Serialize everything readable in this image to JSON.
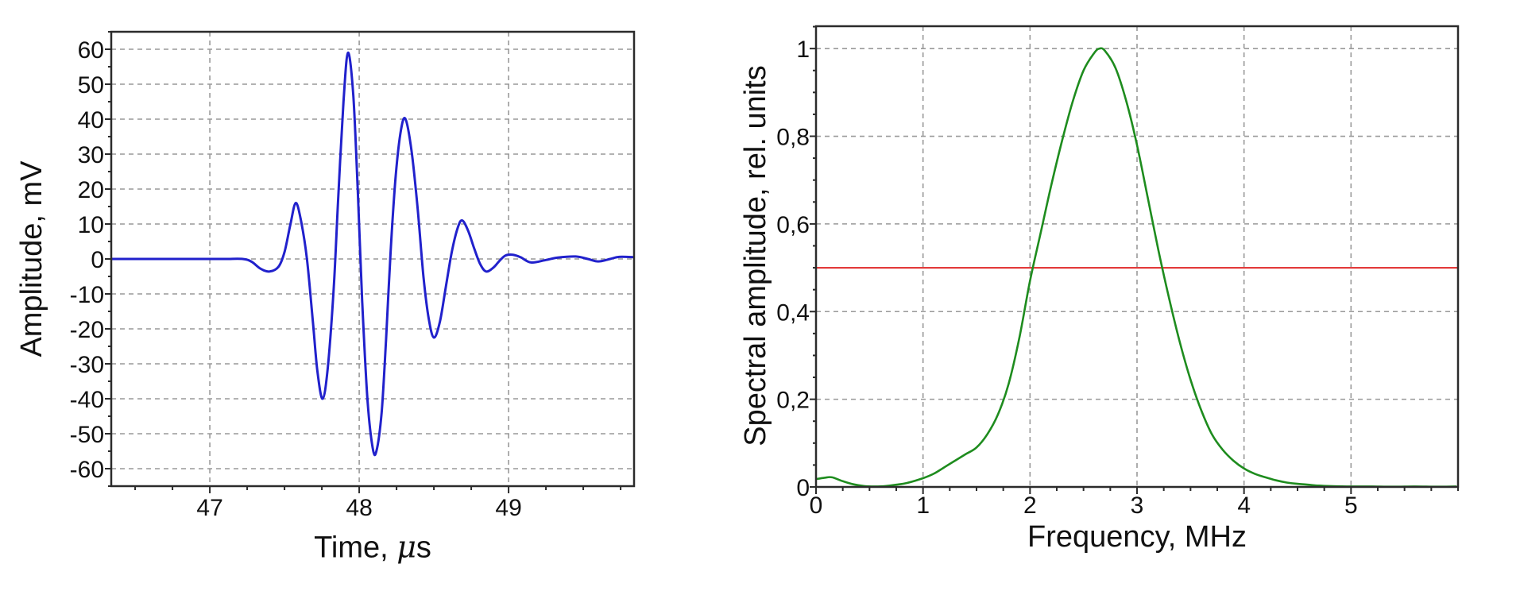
{
  "page": {
    "background": "#ffffff"
  },
  "chart_data": [
    {
      "id": "echo-waveform",
      "type": "line",
      "title": "",
      "xlabel": "Time, μs",
      "ylabel": "Amplitude, mV",
      "xlim": [
        46.34,
        49.84
      ],
      "ylim": [
        -65,
        65
      ],
      "grid": true,
      "grid_color": "#999999",
      "frame_color": "#2b2b2b",
      "xticks": [
        {
          "v": 47,
          "label": "47"
        },
        {
          "v": 48,
          "label": "48"
        },
        {
          "v": 49,
          "label": "49"
        }
      ],
      "yticks": [
        {
          "v": 60,
          "label": "60"
        },
        {
          "v": 50,
          "label": "50"
        },
        {
          "v": 40,
          "label": "40"
        },
        {
          "v": 30,
          "label": "30"
        },
        {
          "v": 20,
          "label": "20"
        },
        {
          "v": 10,
          "label": "10"
        },
        {
          "v": 0,
          "label": "0"
        },
        {
          "v": -10,
          "label": "-10"
        },
        {
          "v": -20,
          "label": "-20"
        },
        {
          "v": -30,
          "label": "-30"
        },
        {
          "v": -40,
          "label": "-40"
        },
        {
          "v": -50,
          "label": "-50"
        },
        {
          "v": -60,
          "label": "-60"
        }
      ],
      "minor_tick_step": {
        "x": 0.25,
        "y": 5
      },
      "series": [
        {
          "name": "ultrasonic-echo-signal",
          "color": "#2121cc",
          "width": 3,
          "points": [
            [
              46.34,
              0
            ],
            [
              46.6,
              0
            ],
            [
              46.9,
              0
            ],
            [
              47.1,
              0
            ],
            [
              47.22,
              0
            ],
            [
              47.28,
              -0.8
            ],
            [
              47.34,
              -2.8
            ],
            [
              47.4,
              -3.6
            ],
            [
              47.46,
              -2.2
            ],
            [
              47.5,
              2
            ],
            [
              47.54,
              10
            ],
            [
              47.575,
              16
            ],
            [
              47.61,
              11
            ],
            [
              47.65,
              0
            ],
            [
              47.69,
              -18
            ],
            [
              47.72,
              -32
            ],
            [
              47.755,
              -40
            ],
            [
              47.79,
              -31
            ],
            [
              47.83,
              -8
            ],
            [
              47.86,
              18
            ],
            [
              47.895,
              45
            ],
            [
              47.925,
              59
            ],
            [
              47.96,
              47
            ],
            [
              47.99,
              20
            ],
            [
              48.02,
              -12
            ],
            [
              48.055,
              -40
            ],
            [
              48.09,
              -54
            ],
            [
              48.115,
              -55
            ],
            [
              48.15,
              -44
            ],
            [
              48.18,
              -23
            ],
            [
              48.21,
              2
            ],
            [
              48.245,
              24
            ],
            [
              48.28,
              37
            ],
            [
              48.31,
              40
            ],
            [
              48.35,
              31
            ],
            [
              48.39,
              15
            ],
            [
              48.43,
              -5
            ],
            [
              48.465,
              -17
            ],
            [
              48.5,
              -22.5
            ],
            [
              48.54,
              -18
            ],
            [
              48.58,
              -8
            ],
            [
              48.62,
              2
            ],
            [
              48.66,
              9
            ],
            [
              48.69,
              11
            ],
            [
              48.73,
              8
            ],
            [
              48.77,
              3
            ],
            [
              48.81,
              -1.5
            ],
            [
              48.85,
              -3.6
            ],
            [
              48.9,
              -2.4
            ],
            [
              48.94,
              -0.5
            ],
            [
              48.98,
              1
            ],
            [
              49.03,
              1.2
            ],
            [
              49.08,
              0.5
            ],
            [
              49.15,
              -1
            ],
            [
              49.25,
              -0.3
            ],
            [
              49.33,
              0.4
            ],
            [
              49.45,
              0.7
            ],
            [
              49.53,
              0
            ],
            [
              49.6,
              -0.7
            ],
            [
              49.68,
              0
            ],
            [
              49.74,
              0.6
            ],
            [
              49.84,
              0.5
            ]
          ]
        }
      ]
    },
    {
      "id": "spectrum",
      "type": "line",
      "title": "",
      "xlabel": "Frequency, MHz",
      "ylabel": "Spectral amplitude, rel. units",
      "xlim": [
        0,
        6
      ],
      "ylim": [
        0,
        1.051
      ],
      "grid": true,
      "grid_color": "#999999",
      "frame_color": "#2b2b2b",
      "xticks": [
        {
          "v": 0,
          "label": "0"
        },
        {
          "v": 1,
          "label": "1"
        },
        {
          "v": 2,
          "label": "2"
        },
        {
          "v": 3,
          "label": "3"
        },
        {
          "v": 4,
          "label": "4"
        },
        {
          "v": 5,
          "label": "5"
        }
      ],
      "yticks": [
        {
          "v": 1,
          "label": "1"
        },
        {
          "v": 0.8,
          "label": "0,8"
        },
        {
          "v": 0.6,
          "label": "0,6"
        },
        {
          "v": 0.4,
          "label": "0,4"
        },
        {
          "v": 0.2,
          "label": "0,2"
        },
        {
          "v": 0,
          "label": "0"
        }
      ],
      "minor_tick_step": {
        "x": 0.25,
        "y": 0.05
      },
      "series": [
        {
          "name": "amplitude-spectrum",
          "color": "#1e8c1e",
          "width": 2.6,
          "points": [
            [
              0,
              0.018
            ],
            [
              0.08,
              0.021
            ],
            [
              0.15,
              0.022
            ],
            [
              0.25,
              0.013
            ],
            [
              0.35,
              0.006
            ],
            [
              0.45,
              0.002
            ],
            [
              0.55,
              0.001
            ],
            [
              0.65,
              0.002
            ],
            [
              0.75,
              0.005
            ],
            [
              0.85,
              0.009
            ],
            [
              1.0,
              0.02
            ],
            [
              1.1,
              0.03
            ],
            [
              1.2,
              0.045
            ],
            [
              1.3,
              0.06
            ],
            [
              1.4,
              0.075
            ],
            [
              1.5,
              0.09
            ],
            [
              1.6,
              0.12
            ],
            [
              1.7,
              0.165
            ],
            [
              1.8,
              0.235
            ],
            [
              1.9,
              0.34
            ],
            [
              2.0,
              0.47
            ],
            [
              2.1,
              0.58
            ],
            [
              2.2,
              0.69
            ],
            [
              2.3,
              0.79
            ],
            [
              2.4,
              0.88
            ],
            [
              2.5,
              0.95
            ],
            [
              2.6,
              0.99
            ],
            [
              2.65,
              1.0
            ],
            [
              2.7,
              0.995
            ],
            [
              2.8,
              0.955
            ],
            [
              2.9,
              0.88
            ],
            [
              3.0,
              0.78
            ],
            [
              3.1,
              0.66
            ],
            [
              3.2,
              0.54
            ],
            [
              3.3,
              0.43
            ],
            [
              3.4,
              0.33
            ],
            [
              3.5,
              0.245
            ],
            [
              3.6,
              0.175
            ],
            [
              3.7,
              0.12
            ],
            [
              3.8,
              0.085
            ],
            [
              3.9,
              0.06
            ],
            [
              4.0,
              0.042
            ],
            [
              4.1,
              0.03
            ],
            [
              4.2,
              0.022
            ],
            [
              4.3,
              0.015
            ],
            [
              4.4,
              0.01
            ],
            [
              4.5,
              0.007
            ],
            [
              4.6,
              0.005
            ],
            [
              4.7,
              0.003
            ],
            [
              4.8,
              0.002
            ],
            [
              5.0,
              0.001
            ],
            [
              5.2,
              0.001
            ],
            [
              5.4,
              0.0005
            ],
            [
              5.6,
              0.001
            ],
            [
              5.8,
              0.0005
            ],
            [
              5.98,
              0.001
            ]
          ]
        }
      ],
      "ref_lines": [
        {
          "name": "half-amplitude-level",
          "axis": "y",
          "value": 0.5,
          "color": "#e02828",
          "width": 2
        }
      ]
    }
  ]
}
